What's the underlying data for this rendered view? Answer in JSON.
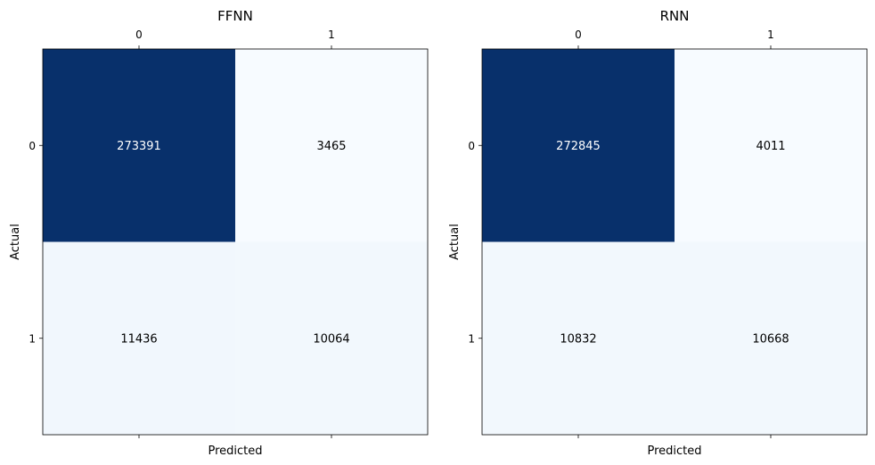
{
  "chart_data": [
    {
      "type": "heatmap",
      "title": "FFNN",
      "xlabel": "Predicted",
      "ylabel": "Actual",
      "x_categories": [
        "0",
        "1"
      ],
      "y_categories": [
        "0",
        "1"
      ],
      "values": [
        [
          273391,
          3465
        ],
        [
          11436,
          10064
        ]
      ],
      "colormap": "Blues",
      "x_ticks_position": "top"
    },
    {
      "type": "heatmap",
      "title": "RNN",
      "xlabel": "Predicted",
      "ylabel": "Actual",
      "x_categories": [
        "0",
        "1"
      ],
      "y_categories": [
        "0",
        "1"
      ],
      "values": [
        [
          272845,
          4011
        ],
        [
          10832,
          10668
        ]
      ],
      "colormap": "Blues",
      "x_ticks_position": "top"
    }
  ]
}
